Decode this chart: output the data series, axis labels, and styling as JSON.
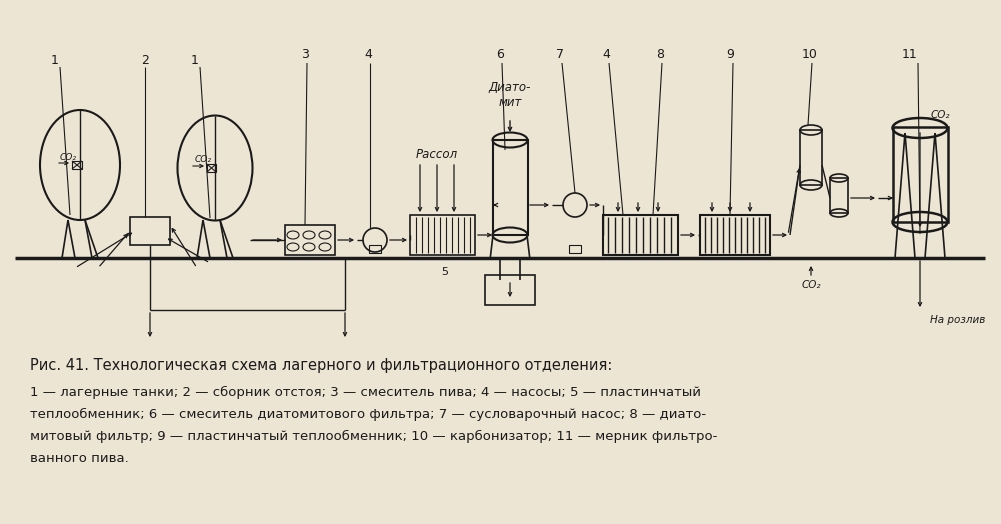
{
  "bg_color": "#ede5d4",
  "line_color": "#1a1a1a",
  "title_line": "Рис. 41. Технологическая схема лагерного и фильтрационного отделения:",
  "desc_line1": "1 — лагерные танки; 2 — сборник отстоя; 3 — смеситель пива; 4 — насосы; 5 — пластинчатый",
  "desc_line2": "теплообменник; 6 — смеситель диатомитового фильтра; 7 — сусловарочный насос; 8 — диато-",
  "desc_line3": "митовый фильтр; 9 — пластинчатый теплообменник; 10 — карбонизатор; 11 — мерник фильтро-",
  "desc_line4": "ванного пива.",
  "label_co2_1": "CO₂",
  "label_diatomit": "Диато-\nмит",
  "label_rassol": "Рассол",
  "label_na_rozliv": "На розлив",
  "label_co2_bottom": "CO₂",
  "label_co2_top11": "CO₂"
}
